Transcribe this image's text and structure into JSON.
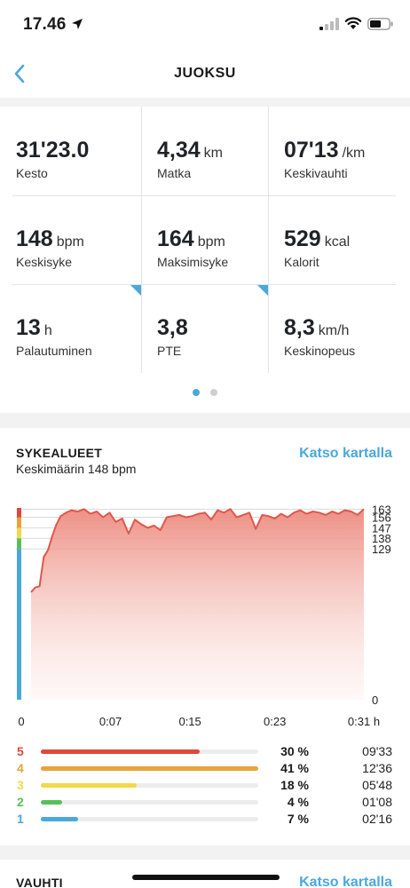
{
  "status_bar": {
    "time": "17.46"
  },
  "nav": {
    "title": "JUOKSU"
  },
  "stats": [
    {
      "value": "31'23.0",
      "unit": "",
      "label": "Kesto"
    },
    {
      "value": "4,34",
      "unit": "km",
      "label": "Matka"
    },
    {
      "value": "07'13",
      "unit": "/km",
      "label": "Keskivauhti"
    },
    {
      "value": "148",
      "unit": "bpm",
      "label": "Keskisyke"
    },
    {
      "value": "164",
      "unit": "bpm",
      "label": "Maksimisyke"
    },
    {
      "value": "529",
      "unit": "kcal",
      "label": "Kalorit"
    },
    {
      "value": "13",
      "unit": "h",
      "label": "Palautuminen"
    },
    {
      "value": "3,8",
      "unit": "",
      "label": "PTE"
    },
    {
      "value": "8,3",
      "unit": "km/h",
      "label": "Keskinopeus"
    }
  ],
  "heart_rate": {
    "title": "SYKEALUEET",
    "subtitle": "Keskimäärin 148 bpm",
    "map_link": "Katso kartalla",
    "zones": [
      {
        "zone": "5",
        "percent": "30 %",
        "fraction": 0.3,
        "time": "09'33",
        "color": "#e0483a"
      },
      {
        "zone": "4",
        "percent": "41 %",
        "fraction": 0.41,
        "time": "12'36",
        "color": "#e7a33d"
      },
      {
        "zone": "3",
        "percent": "18 %",
        "fraction": 0.18,
        "time": "05'48",
        "color": "#f0d94a"
      },
      {
        "zone": "2",
        "percent": "4 %",
        "fraction": 0.04,
        "time": "01'08",
        "color": "#58c05a"
      },
      {
        "zone": "1",
        "percent": "7 %",
        "fraction": 0.07,
        "time": "02'16",
        "color": "#4aa8dd"
      }
    ]
  },
  "chart_data": {
    "type": "area",
    "x_unit": "min",
    "y_unit": "bpm",
    "x_tick_labels": [
      "0",
      "0:07",
      "0:15",
      "0:23",
      "0:31 h"
    ],
    "x_ticks": [
      0,
      7.5,
      15,
      23,
      31.4
    ],
    "y_tick_labels": [
      "163",
      "156",
      "147",
      "138",
      "129",
      "0"
    ],
    "y_ticks": [
      163,
      156,
      147,
      138,
      129,
      0
    ],
    "xlim": [
      0,
      31.4
    ],
    "ylim": [
      0,
      164
    ],
    "line_color": "#e0574a",
    "zone_colors": [
      "#4aa8dd",
      "#58c05a",
      "#f0d94a",
      "#e7a33d",
      "#e0483a"
    ],
    "x": [
      0,
      0.4,
      0.8,
      1.2,
      1.6,
      2.0,
      2.4,
      2.8,
      3.3,
      3.8,
      4.4,
      5.0,
      5.6,
      6.2,
      6.8,
      7.4,
      8.0,
      8.6,
      9.2,
      9.8,
      10.4,
      11.0,
      11.6,
      12.2,
      12.8,
      13.4,
      14.0,
      14.6,
      15.2,
      15.8,
      16.4,
      17.0,
      17.6,
      18.2,
      18.8,
      19.4,
      20.0,
      20.6,
      21.2,
      21.8,
      22.4,
      23.0,
      23.6,
      24.2,
      24.8,
      25.4,
      26.0,
      26.6,
      27.2,
      27.8,
      28.4,
      29.0,
      29.6,
      30.2,
      30.8,
      31.4
    ],
    "y": [
      92,
      96,
      97,
      122,
      128,
      140,
      150,
      157,
      160,
      162,
      161,
      163,
      159,
      161,
      156,
      160,
      152,
      155,
      142,
      154,
      150,
      147,
      149,
      145,
      156,
      157,
      158,
      156,
      157,
      159,
      160,
      154,
      162,
      160,
      163,
      156,
      158,
      160,
      146,
      158,
      157,
      155,
      159,
      156,
      160,
      162,
      159,
      161,
      160,
      158,
      161,
      159,
      162,
      161,
      158,
      163
    ]
  },
  "pace": {
    "title": "VAUHTI",
    "map_link": "Katso kartalla"
  }
}
